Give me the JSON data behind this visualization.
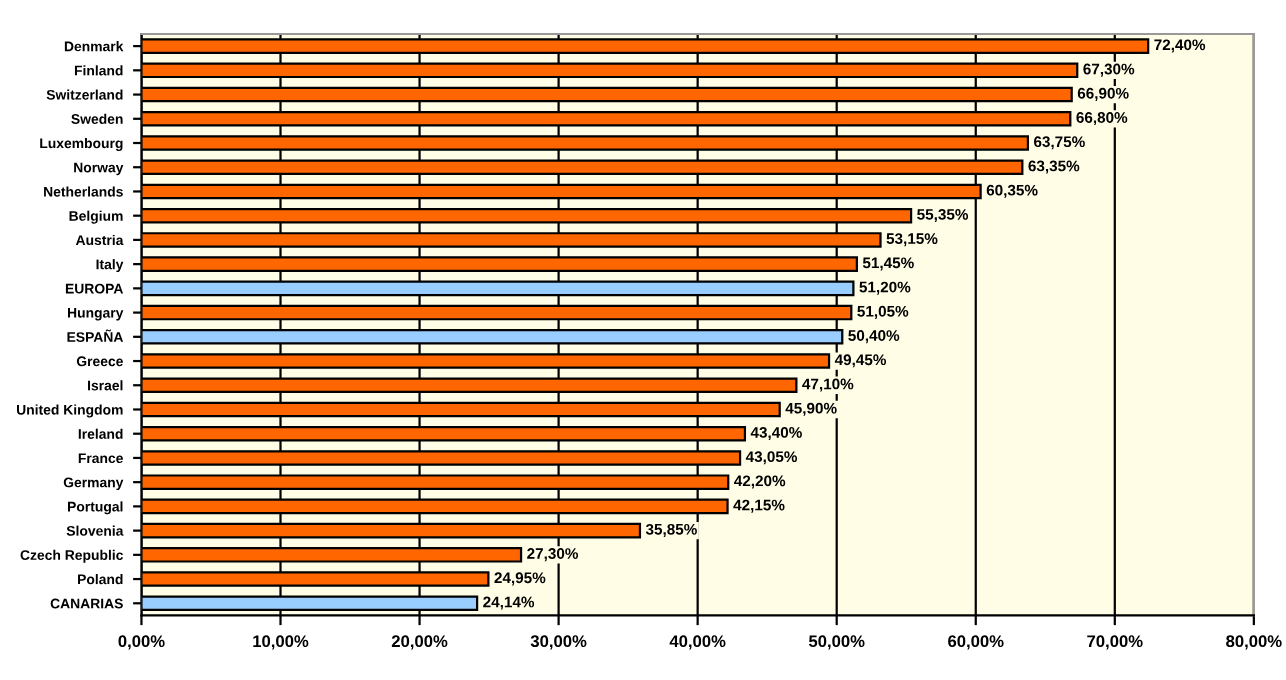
{
  "chart_data": {
    "type": "bar",
    "orientation": "horizontal",
    "categories": [
      "Denmark",
      "Finland",
      "Switzerland",
      "Sweden",
      "Luxembourg",
      "Norway",
      "Netherlands",
      "Belgium",
      "Austria",
      "Italy",
      "EUROPA",
      "Hungary",
      "ESPAÑA",
      "Greece",
      "Israel",
      "United Kingdom",
      "Ireland",
      "France",
      "Germany",
      "Portugal",
      "Slovenia",
      "Czech Republic",
      "Poland",
      "CANARIAS"
    ],
    "values": [
      72.4,
      67.3,
      66.9,
      66.8,
      63.75,
      63.35,
      60.35,
      55.35,
      53.15,
      51.45,
      51.2,
      51.05,
      50.4,
      49.45,
      47.1,
      45.9,
      43.4,
      43.05,
      42.2,
      42.15,
      35.85,
      27.3,
      24.95,
      24.14
    ],
    "value_labels": [
      "72,40%",
      "67,30%",
      "66,90%",
      "66,80%",
      "63,75%",
      "63,35%",
      "60,35%",
      "55,35%",
      "53,15%",
      "51,45%",
      "51,20%",
      "51,05%",
      "50,40%",
      "49,45%",
      "47,10%",
      "45,90%",
      "43,40%",
      "43,05%",
      "42,20%",
      "42,15%",
      "35,85%",
      "27,30%",
      "24,95%",
      "24,14%"
    ],
    "colors": [
      "#ff6600",
      "#ff6600",
      "#ff6600",
      "#ff6600",
      "#ff6600",
      "#ff6600",
      "#ff6600",
      "#ff6600",
      "#ff6600",
      "#ff6600",
      "#99ccff",
      "#ff6600",
      "#99ccff",
      "#ff6600",
      "#ff6600",
      "#ff6600",
      "#ff6600",
      "#ff6600",
      "#ff6600",
      "#ff6600",
      "#ff6600",
      "#ff6600",
      "#ff6600",
      "#99ccff"
    ],
    "xlim": [
      0,
      80
    ],
    "xticks": [
      {
        "value": 0,
        "label": "0,00%"
      },
      {
        "value": 10,
        "label": "10,00%"
      },
      {
        "value": 20,
        "label": "20,00%"
      },
      {
        "value": 30,
        "label": "30,00%"
      },
      {
        "value": 40,
        "label": "40,00%"
      },
      {
        "value": 50,
        "label": "50,00%"
      },
      {
        "value": 60,
        "label": "60,00%"
      },
      {
        "value": 70,
        "label": "70,00%"
      },
      {
        "value": 80,
        "label": "80,00%"
      }
    ],
    "grid": "x"
  }
}
